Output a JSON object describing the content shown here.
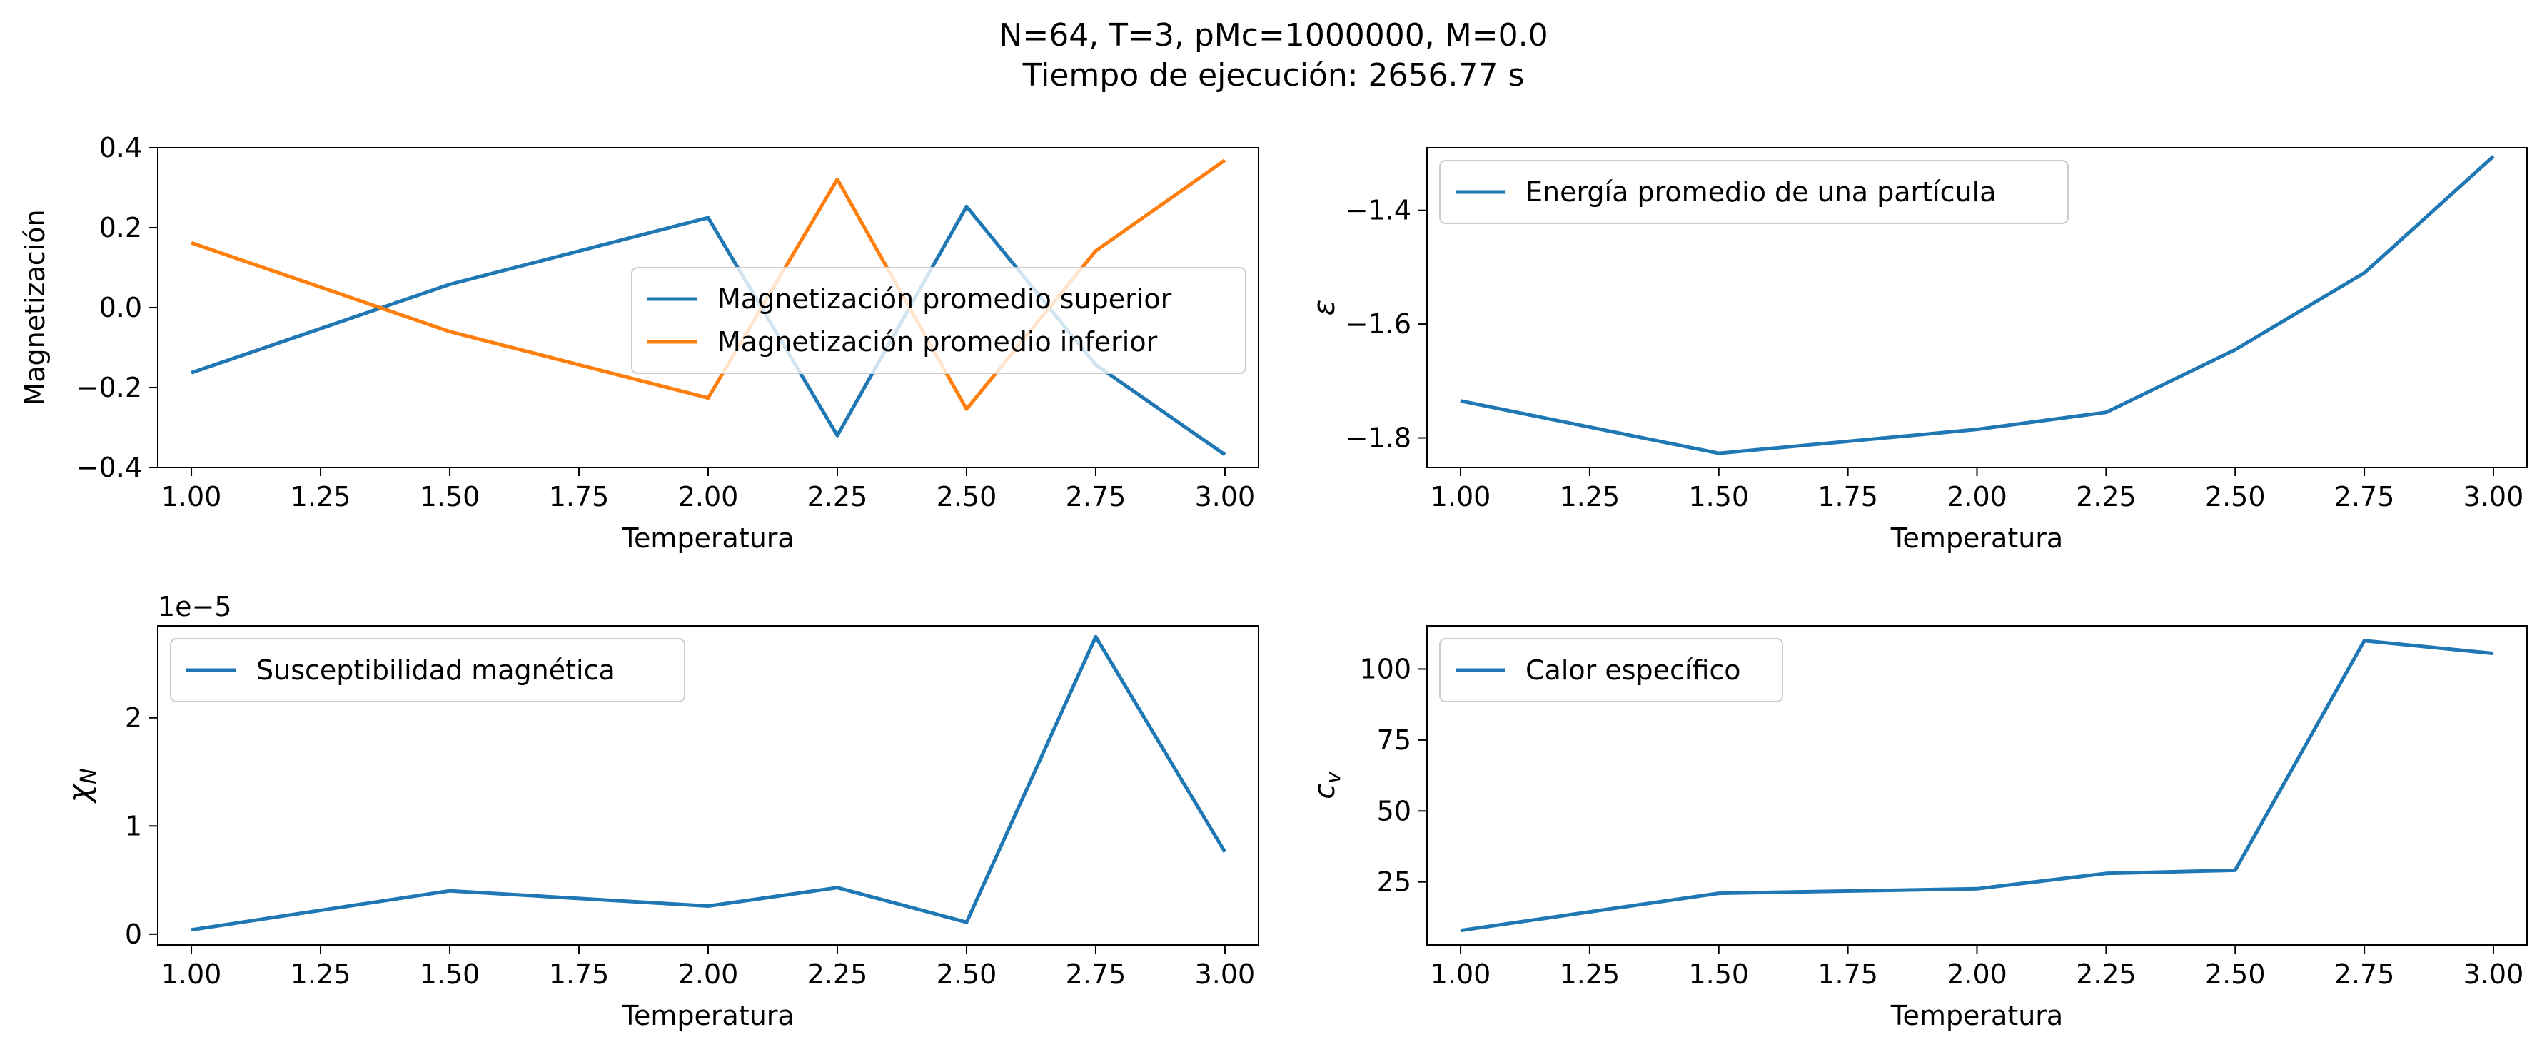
{
  "figure": {
    "title_line1": "N=64, T=3, pMc=1000000, M=0.0",
    "title_line2": "Tiempo de ejecución: 2656.77 s"
  },
  "colors": {
    "blue": "#1f77b4",
    "orange": "#ff7f0e"
  },
  "chart_data": [
    {
      "type": "line",
      "xlabel": "Temperatura",
      "ylabel": "Magnetización",
      "xlim": [
        0.935,
        3.065
      ],
      "ylim": [
        -0.4,
        0.4
      ],
      "xticks": [
        1.0,
        1.25,
        1.5,
        1.75,
        2.0,
        2.25,
        2.5,
        2.75,
        3.0
      ],
      "xtick_labels": [
        "1.00",
        "1.25",
        "1.50",
        "1.75",
        "2.00",
        "2.25",
        "2.50",
        "2.75",
        "3.00"
      ],
      "yticks": [
        -0.4,
        -0.2,
        0.0,
        0.2,
        0.4
      ],
      "ytick_labels": [
        "−0.4",
        "−0.2",
        "0.0",
        "0.2",
        "0.4"
      ],
      "legend": "center-right",
      "series": [
        {
          "name": "Magnetización promedio superior",
          "color": "#1f77b4",
          "x": [
            1.0,
            1.5,
            2.0,
            2.25,
            2.5,
            2.75,
            3.0
          ],
          "y": [
            -0.163,
            0.058,
            0.225,
            -0.32,
            0.253,
            -0.143,
            -0.368
          ]
        },
        {
          "name": "Magnetización promedio inferior",
          "color": "#ff7f0e",
          "x": [
            1.0,
            1.5,
            2.0,
            2.25,
            2.5,
            2.75,
            3.0
          ],
          "y": [
            0.162,
            -0.06,
            -0.226,
            0.321,
            -0.254,
            0.142,
            0.369
          ]
        }
      ]
    },
    {
      "type": "line",
      "xlabel": "Temperatura",
      "ylabel": "ε",
      "xlim": [
        0.935,
        3.065
      ],
      "ylim": [
        -1.852,
        -1.29
      ],
      "xticks": [
        1.0,
        1.25,
        1.5,
        1.75,
        2.0,
        2.25,
        2.5,
        2.75,
        3.0
      ],
      "xtick_labels": [
        "1.00",
        "1.25",
        "1.50",
        "1.75",
        "2.00",
        "2.25",
        "2.50",
        "2.75",
        "3.00"
      ],
      "yticks": [
        -1.8,
        -1.6,
        -1.4
      ],
      "ytick_labels": [
        "−1.8",
        "−1.6",
        "−1.4"
      ],
      "legend": "top-left",
      "series": [
        {
          "name": "Energía promedio de una partícula",
          "color": "#1f77b4",
          "x": [
            1.0,
            1.5,
            2.0,
            2.25,
            2.5,
            2.75,
            3.0
          ],
          "y": [
            -1.735,
            -1.827,
            -1.785,
            -1.755,
            -1.645,
            -1.51,
            -1.305
          ]
        }
      ]
    },
    {
      "type": "line",
      "xlabel": "Temperatura",
      "ylabel": "χN",
      "offset_label": "1e−5",
      "xlim": [
        0.935,
        3.065
      ],
      "ylim": [
        -0.1,
        2.85
      ],
      "xticks": [
        1.0,
        1.25,
        1.5,
        1.75,
        2.0,
        2.25,
        2.5,
        2.75,
        3.0
      ],
      "xtick_labels": [
        "1.00",
        "1.25",
        "1.50",
        "1.75",
        "2.00",
        "2.25",
        "2.50",
        "2.75",
        "3.00"
      ],
      "yticks": [
        0,
        1,
        2
      ],
      "ytick_labels": [
        "0",
        "1",
        "2"
      ],
      "legend": "top-left",
      "series": [
        {
          "name": "Susceptibilidad magnética",
          "color": "#1f77b4",
          "x": [
            1.0,
            1.5,
            2.0,
            2.25,
            2.5,
            2.75,
            3.0
          ],
          "y": [
            0.04,
            0.4,
            0.26,
            0.43,
            0.11,
            2.75,
            0.76
          ]
        }
      ]
    },
    {
      "type": "line",
      "xlabel": "Temperatura",
      "ylabel": "cv",
      "xlim": [
        0.935,
        3.065
      ],
      "ylim": [
        2.8,
        115.2
      ],
      "xticks": [
        1.0,
        1.25,
        1.5,
        1.75,
        2.0,
        2.25,
        2.5,
        2.75,
        3.0
      ],
      "xtick_labels": [
        "1.00",
        "1.25",
        "1.50",
        "1.75",
        "2.00",
        "2.25",
        "2.50",
        "2.75",
        "3.00"
      ],
      "yticks": [
        25,
        50,
        75,
        100
      ],
      "ytick_labels": [
        "25",
        "50",
        "75",
        "100"
      ],
      "legend": "top-left",
      "series": [
        {
          "name": "Calor específico",
          "color": "#1f77b4",
          "x": [
            1.0,
            1.5,
            2.0,
            2.25,
            2.5,
            2.75,
            3.0
          ],
          "y": [
            7.9,
            21.0,
            22.6,
            28.0,
            29.1,
            110.0,
            105.5
          ]
        }
      ]
    }
  ]
}
